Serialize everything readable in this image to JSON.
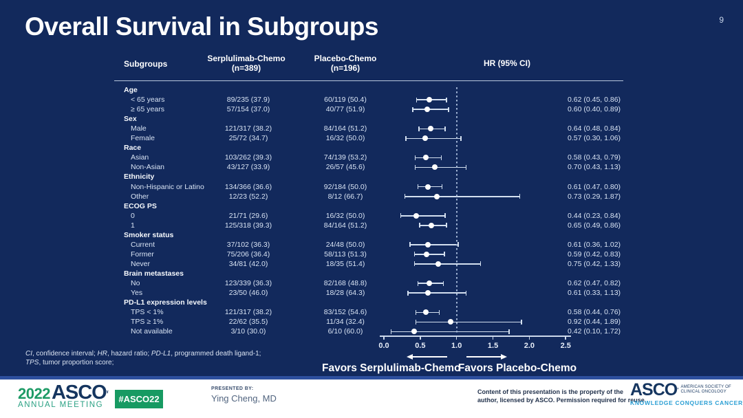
{
  "page_number": "9",
  "title": "Overall Survival in Subgroups",
  "header": {
    "subgroups": "Subgroups",
    "serp_line1": "Serplulimab-Chemo",
    "serp_line2": "(n=389)",
    "plac_line1": "Placebo-Chemo",
    "plac_line2": "(n=196)",
    "hr": "HR (95% CI)"
  },
  "rows": [
    {
      "label": "Age",
      "group": true
    },
    {
      "label": "< 65 years",
      "serp": "89/235 (37.9)",
      "plac": "60/119 (50.4)",
      "hr_text": "0.62 (0.45, 0.86)",
      "hr": 0.62,
      "lo": 0.45,
      "hi": 0.86
    },
    {
      "label": "≥ 65 years",
      "serp": "57/154 (37.0)",
      "plac": "40/77 (51.9)",
      "hr_text": "0.60 (0.40, 0.89)",
      "hr": 0.6,
      "lo": 0.4,
      "hi": 0.89
    },
    {
      "label": "Sex",
      "group": true
    },
    {
      "label": "Male",
      "serp": "121/317 (38.2)",
      "plac": "84/164 (51.2)",
      "hr_text": "0.64 (0.48, 0.84)",
      "hr": 0.64,
      "lo": 0.48,
      "hi": 0.84
    },
    {
      "label": "Female",
      "serp": "25/72 (34.7)",
      "plac": "16/32 (50.0)",
      "hr_text": "0.57 (0.30, 1.06)",
      "hr": 0.57,
      "lo": 0.3,
      "hi": 1.06
    },
    {
      "label": "Race",
      "group": true
    },
    {
      "label": "Asian",
      "serp": "103/262 (39.3)",
      "plac": "74/139 (53.2)",
      "hr_text": "0.58 (0.43, 0.79)",
      "hr": 0.58,
      "lo": 0.43,
      "hi": 0.79
    },
    {
      "label": "Non-Asian",
      "serp": "43/127 (33.9)",
      "plac": "26/57 (45.6)",
      "hr_text": "0.70 (0.43, 1.13)",
      "hr": 0.7,
      "lo": 0.43,
      "hi": 1.13
    },
    {
      "label": "Ethnicity",
      "group": true
    },
    {
      "label": "Non-Hispanic or Latino",
      "serp": "134/366 (36.6)",
      "plac": "92/184 (50.0)",
      "hr_text": "0.61 (0.47, 0.80)",
      "hr": 0.61,
      "lo": 0.47,
      "hi": 0.8
    },
    {
      "label": "Other",
      "serp": "12/23 (52.2)",
      "plac": "8/12 (66.7)",
      "hr_text": "0.73 (0.29, 1.87)",
      "hr": 0.73,
      "lo": 0.29,
      "hi": 1.87
    },
    {
      "label": "ECOG PS",
      "group": true
    },
    {
      "label": "0",
      "serp": "21/71 (29.6)",
      "plac": "16/32 (50.0)",
      "hr_text": "0.44 (0.23, 0.84)",
      "hr": 0.44,
      "lo": 0.23,
      "hi": 0.84
    },
    {
      "label": "1",
      "serp": "125/318 (39.3)",
      "plac": "84/164 (51.2)",
      "hr_text": "0.65 (0.49, 0.86)",
      "hr": 0.65,
      "lo": 0.49,
      "hi": 0.86
    },
    {
      "label": "Smoker status",
      "group": true
    },
    {
      "label": "Current",
      "serp": "37/102 (36.3)",
      "plac": "24/48 (50.0)",
      "hr_text": "0.61 (0.36, 1.02)",
      "hr": 0.61,
      "lo": 0.36,
      "hi": 1.02
    },
    {
      "label": "Former",
      "serp": "75/206 (36.4)",
      "plac": "58/113 (51.3)",
      "hr_text": "0.59 (0.42, 0.83)",
      "hr": 0.59,
      "lo": 0.42,
      "hi": 0.83
    },
    {
      "label": "Never",
      "serp": "34/81 (42.0)",
      "plac": "18/35 (51.4)",
      "hr_text": "0.75 (0.42, 1.33)",
      "hr": 0.75,
      "lo": 0.42,
      "hi": 1.33
    },
    {
      "label": "Brain metastases",
      "group": true
    },
    {
      "label": "No",
      "serp": "123/339 (36.3)",
      "plac": "82/168 (48.8)",
      "hr_text": "0.62 (0.47, 0.82)",
      "hr": 0.62,
      "lo": 0.47,
      "hi": 0.82
    },
    {
      "label": "Yes",
      "serp": "23/50 (46.0)",
      "plac": "18/28 (64.3)",
      "hr_text": "0.61 (0.33, 1.13)",
      "hr": 0.61,
      "lo": 0.33,
      "hi": 1.13
    },
    {
      "label": "PD-L1 expression levels",
      "group": true
    },
    {
      "label": "TPS < 1%",
      "serp": "121/317 (38.2)",
      "plac": "83/152 (54.6)",
      "hr_text": "0.58 (0.44, 0.76)",
      "hr": 0.58,
      "lo": 0.44,
      "hi": 0.76
    },
    {
      "label": "TPS ≥ 1%",
      "serp": "22/62 (35.5)",
      "plac": "11/34 (32.4)",
      "hr_text": "0.92 (0.44, 1.89)",
      "hr": 0.92,
      "lo": 0.44,
      "hi": 1.89
    },
    {
      "label": "Not available",
      "serp": "3/10 (30.0)",
      "plac": "6/10 (60.0)",
      "hr_text": "0.42 (0.10, 1.72)",
      "hr": 0.42,
      "lo": 0.1,
      "hi": 1.72
    }
  ],
  "axis": {
    "ticks": [
      "0.0",
      "0.5",
      "1.0",
      "1.5",
      "2.0",
      "2.5"
    ],
    "reference_line": 1.0
  },
  "favors": {
    "left": "Favors Serplulimab-Chemo",
    "right": "Favors Placebo-Chemo"
  },
  "footnote": {
    "line1": [
      {
        "t": "CI",
        "i": true
      },
      {
        "t": ", confidence interval; ",
        "i": false
      },
      {
        "t": "HR",
        "i": true
      },
      {
        "t": ", hazard ratio; ",
        "i": false
      },
      {
        "t": "PD-L1",
        "i": true
      },
      {
        "t": ", programmed death ligand-1;",
        "i": false
      }
    ],
    "line2": [
      {
        "t": "TPS",
        "i": true
      },
      {
        "t": ", tumor proportion score;",
        "i": false
      }
    ]
  },
  "footer": {
    "logo_year": "2022",
    "logo_asco": "ASCO",
    "logo_annual": "ANNUAL MEETING",
    "hashtag": "#ASCO22",
    "presented_by_label": "PRESENTED BY:",
    "presenter": "Ying Cheng, MD",
    "copyright_line1": "Content of this presentation is the property of the",
    "copyright_line2": "author, licensed by ASCO. Permission required for reuse.",
    "asco_word": "ASCO",
    "asco_sub1": "AMERICAN SOCIETY OF",
    "asco_sub2": "CLINICAL ONCOLOGY",
    "asco_tagline": "KNOWLEDGE CONQUERS CANCER"
  },
  "colors": {
    "background": "#12295c",
    "text": "#ffffff",
    "marker": "#d4e0f0",
    "green": "#179a62",
    "asco_navy": "#15355f",
    "teal": "#2a9fd4",
    "footer_separator": "#2d4f9e"
  },
  "chart_data": {
    "type": "scatter",
    "variant": "forest-plot",
    "title": "Overall Survival in Subgroups",
    "xlabel": "HR (95% CI)",
    "xlim": [
      0.0,
      2.5
    ],
    "x_ticks": [
      0.0,
      0.5,
      1.0,
      1.5,
      2.0,
      2.5
    ],
    "reference_line": 1.0,
    "favors_left": "Favors Serplulimab-Chemo",
    "favors_right": "Favors Placebo-Chemo",
    "points": [
      {
        "subgroup": "< 65 years",
        "hr": 0.62,
        "ci": [
          0.45,
          0.86
        ]
      },
      {
        "subgroup": "≥ 65 years",
        "hr": 0.6,
        "ci": [
          0.4,
          0.89
        ]
      },
      {
        "subgroup": "Male",
        "hr": 0.64,
        "ci": [
          0.48,
          0.84
        ]
      },
      {
        "subgroup": "Female",
        "hr": 0.57,
        "ci": [
          0.3,
          1.06
        ]
      },
      {
        "subgroup": "Asian",
        "hr": 0.58,
        "ci": [
          0.43,
          0.79
        ]
      },
      {
        "subgroup": "Non-Asian",
        "hr": 0.7,
        "ci": [
          0.43,
          1.13
        ]
      },
      {
        "subgroup": "Non-Hispanic or Latino",
        "hr": 0.61,
        "ci": [
          0.47,
          0.8
        ]
      },
      {
        "subgroup": "Other",
        "hr": 0.73,
        "ci": [
          0.29,
          1.87
        ]
      },
      {
        "subgroup": "ECOG PS 0",
        "hr": 0.44,
        "ci": [
          0.23,
          0.84
        ]
      },
      {
        "subgroup": "ECOG PS 1",
        "hr": 0.65,
        "ci": [
          0.49,
          0.86
        ]
      },
      {
        "subgroup": "Current smoker",
        "hr": 0.61,
        "ci": [
          0.36,
          1.02
        ]
      },
      {
        "subgroup": "Former smoker",
        "hr": 0.59,
        "ci": [
          0.42,
          0.83
        ]
      },
      {
        "subgroup": "Never smoker",
        "hr": 0.75,
        "ci": [
          0.42,
          1.33
        ]
      },
      {
        "subgroup": "Brain metastases No",
        "hr": 0.62,
        "ci": [
          0.47,
          0.82
        ]
      },
      {
        "subgroup": "Brain metastases Yes",
        "hr": 0.61,
        "ci": [
          0.33,
          1.13
        ]
      },
      {
        "subgroup": "TPS < 1%",
        "hr": 0.58,
        "ci": [
          0.44,
          0.76
        ]
      },
      {
        "subgroup": "TPS ≥ 1%",
        "hr": 0.92,
        "ci": [
          0.44,
          1.89
        ]
      },
      {
        "subgroup": "Not available",
        "hr": 0.42,
        "ci": [
          0.1,
          1.72
        ]
      }
    ]
  }
}
